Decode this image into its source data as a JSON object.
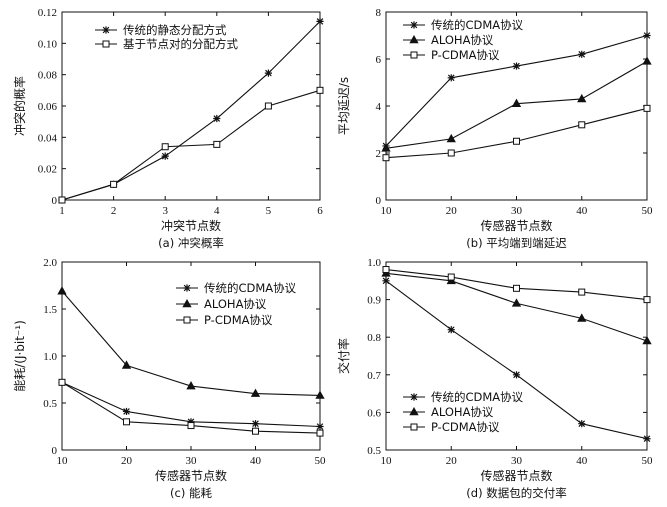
{
  "chart_data": [
    {
      "id": "a",
      "type": "line",
      "caption": "(a) 冲突概率",
      "xlabel": "冲突节点数",
      "ylabel": "冲突的概率",
      "x": [
        1,
        2,
        3,
        4,
        5,
        6
      ],
      "xticks": [
        "1",
        "2",
        "3",
        "4",
        "5",
        "6"
      ],
      "xlim": [
        1,
        6
      ],
      "ylim": [
        0,
        0.12
      ],
      "yticks": [
        "0",
        "0.02",
        "0.04",
        "0.06",
        "0.08",
        "0.10",
        "0.12"
      ],
      "ytick_values": [
        0,
        0.02,
        0.04,
        0.06,
        0.08,
        0.1,
        0.12
      ],
      "legend_position": "top-left",
      "series": [
        {
          "name": "传统的静态分配方式",
          "marker": "star",
          "values": [
            0,
            0.01,
            0.028,
            0.052,
            0.081,
            0.114
          ]
        },
        {
          "name": "基于节点对的分配方式",
          "marker": "square",
          "values": [
            0,
            0.01,
            0.034,
            0.0355,
            0.06,
            0.07
          ]
        }
      ]
    },
    {
      "id": "b",
      "type": "line",
      "caption": "(b) 平均端到端延迟",
      "xlabel": "传感器节点数",
      "ylabel": "平均延迟/s",
      "x": [
        10,
        20,
        30,
        40,
        50
      ],
      "xticks": [
        "10",
        "20",
        "30",
        "40",
        "50"
      ],
      "xlim": [
        10,
        50
      ],
      "ylim": [
        0,
        8
      ],
      "yticks": [
        "0",
        "2",
        "4",
        "6",
        "8"
      ],
      "ytick_values": [
        0,
        2,
        4,
        6,
        8
      ],
      "legend_position": "top-left",
      "series": [
        {
          "name": "传统的CDMA协议",
          "marker": "star",
          "values": [
            2.3,
            5.2,
            5.7,
            6.2,
            7.0
          ]
        },
        {
          "name": "ALOHA协议",
          "marker": "triangle",
          "values": [
            2.2,
            2.6,
            4.1,
            4.3,
            5.9
          ]
        },
        {
          "name": "P-CDMA协议",
          "marker": "square",
          "values": [
            1.8,
            2.0,
            2.5,
            3.2,
            3.9
          ]
        }
      ]
    },
    {
      "id": "c",
      "type": "line",
      "caption": "(c) 能耗",
      "xlabel": "传感器节点数",
      "ylabel": "能耗/(J·bit⁻¹)",
      "x": [
        10,
        20,
        30,
        40,
        50
      ],
      "xticks": [
        "10",
        "20",
        "30",
        "40",
        "50"
      ],
      "xlim": [
        10,
        50
      ],
      "ylim": [
        0,
        2.0
      ],
      "yticks": [
        "0",
        "0.5",
        "1.0",
        "1.5",
        "2.0"
      ],
      "ytick_values": [
        0,
        0.5,
        1.0,
        1.5,
        2.0
      ],
      "legend_position": "top-right",
      "series": [
        {
          "name": "传统的CDMA协议",
          "marker": "star",
          "values": [
            0.72,
            0.41,
            0.3,
            0.28,
            0.25
          ]
        },
        {
          "name": "ALOHA协议",
          "marker": "triangle",
          "values": [
            1.69,
            0.9,
            0.68,
            0.6,
            0.58
          ]
        },
        {
          "name": "P-CDMA协议",
          "marker": "square",
          "values": [
            0.72,
            0.3,
            0.26,
            0.2,
            0.18
          ]
        }
      ]
    },
    {
      "id": "d",
      "type": "line",
      "caption": "(d) 数据包的交付率",
      "xlabel": "传感器节点数",
      "ylabel": "交付率",
      "x": [
        10,
        20,
        30,
        40,
        50
      ],
      "xticks": [
        "10",
        "20",
        "30",
        "40",
        "50"
      ],
      "xlim": [
        10,
        50
      ],
      "ylim": [
        0.5,
        1.0
      ],
      "yticks": [
        "0.5",
        "0.6",
        "0.7",
        "0.8",
        "0.9",
        "1.0"
      ],
      "ytick_values": [
        0.5,
        0.6,
        0.7,
        0.8,
        0.9,
        1.0
      ],
      "legend_position": "bottom-left",
      "series": [
        {
          "name": "传统的CDMA协议",
          "marker": "star",
          "values": [
            0.95,
            0.82,
            0.7,
            0.57,
            0.53
          ]
        },
        {
          "name": "ALOHA协议",
          "marker": "triangle",
          "values": [
            0.97,
            0.95,
            0.89,
            0.85,
            0.79
          ]
        },
        {
          "name": "P-CDMA协议",
          "marker": "square",
          "values": [
            0.98,
            0.96,
            0.93,
            0.92,
            0.9
          ]
        }
      ]
    }
  ]
}
